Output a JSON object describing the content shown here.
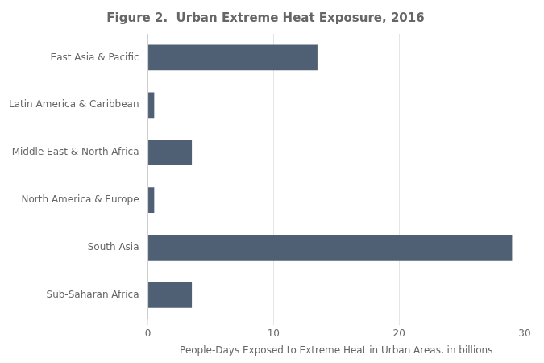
{
  "chart_data": {
    "type": "bar",
    "orientation": "horizontal",
    "title": "Figure 2.  Urban Extreme Heat Exposure, 2016",
    "categories": [
      "Sub-Saharan Africa",
      "South Asia",
      "North America & Europe",
      "Middle East & North Africa",
      "Latin America & Caribbean",
      "East Asia & Pacific"
    ],
    "values": [
      3.5,
      29.0,
      0.5,
      3.5,
      0.5,
      13.5
    ],
    "color": "#4f5f74",
    "xlabel": "People-Days Exposed to Extreme Heat in Urban Areas, in billions",
    "xlim": [
      0,
      30
    ],
    "xticks": [
      0,
      10,
      20,
      30
    ],
    "grid": true
  }
}
